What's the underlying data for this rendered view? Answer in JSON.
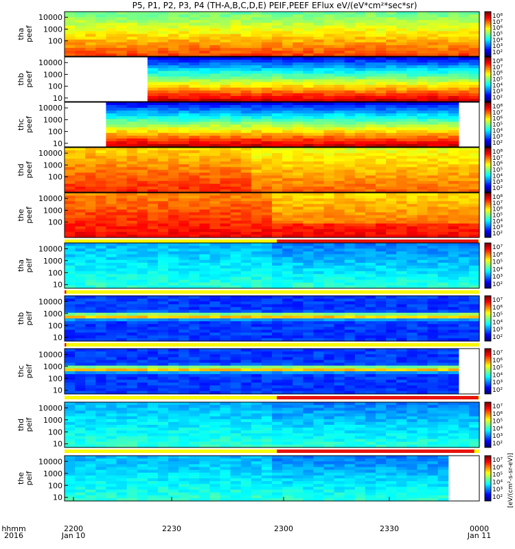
{
  "chart_data": {
    "type": "heatmap",
    "title": "P5, P1, P2, P3, P4 (TH-A,B,C,D,E) PEIF,PEEF EFlux eV/(eV*cm²*sec*sr)",
    "x_ticks": [
      "2200",
      "2230",
      "2300",
      "2330",
      "0000"
    ],
    "x_dates": [
      "Jan 10",
      "Jan 11"
    ],
    "x_axis_label": "hhmm",
    "x_axis_year": "2016",
    "colorbar_label": "[eV/(cm²-s-sr-eV)]",
    "colorbar_ticks_high": [
      "10⁸",
      "10⁷",
      "10⁶",
      "10⁵",
      "10⁴",
      "10³",
      "10²"
    ],
    "colorbar_ticks_low": [
      "10⁷",
      "10⁶",
      "10⁵",
      "10⁴",
      "10³",
      "10²"
    ],
    "y_ticks": [
      "10000",
      "1000",
      "100",
      "10"
    ],
    "y_scale": "log",
    "ylim": [
      5,
      30000
    ],
    "panels": [
      {
        "probe": "tha",
        "product": "peef",
        "ylabel": "tha\npeef",
        "yticks": [
          "10000",
          "1000",
          "100"
        ],
        "mode": "eef",
        "gaps": [],
        "notch": [
          0.39,
          0.41
        ],
        "bright": [
          [
            0.0,
            0.235,
            "orange"
          ],
          [
            0.39,
            0.41,
            "green"
          ]
        ],
        "flag_bar": null
      },
      {
        "probe": "thb",
        "product": "peef",
        "ylabel": "thb\npeef",
        "yticks": [
          "10000",
          "1000",
          "100",
          "10"
        ],
        "mode": "eef_cool",
        "gaps": [
          [
            0.0,
            0.19
          ]
        ],
        "flag_bar": null
      },
      {
        "probe": "thc",
        "product": "peef",
        "ylabel": "thc\npeef",
        "yticks": [
          "10000",
          "1000",
          "100",
          "10"
        ],
        "mode": "eef_cool",
        "gaps": [
          [
            0.0,
            0.095
          ],
          [
            0.955,
            1.0
          ]
        ],
        "flag_bar": null
      },
      {
        "probe": "thd",
        "product": "peef",
        "ylabel": "thd\npeef",
        "yticks": [
          "10000",
          "1000",
          "100"
        ],
        "mode": "eef_hot",
        "gaps": [],
        "flag_bar": null
      },
      {
        "probe": "the",
        "product": "peef",
        "ylabel": "the\npeef",
        "yticks": [
          "10000",
          "1000",
          "100"
        ],
        "mode": "eef_hot2",
        "gaps": [],
        "flag_bar": [
          0.512,
          0.998
        ]
      },
      {
        "probe": "tha",
        "product": "peif",
        "ylabel": "tha\npeif",
        "yticks": [
          "10000",
          "1000",
          "100",
          "10"
        ],
        "mode": "eif",
        "gaps": [],
        "flag_bar": [
          0.0,
          0.004
        ]
      },
      {
        "probe": "thb",
        "product": "peif",
        "ylabel": "thb\npeif",
        "yticks": [
          "10000",
          "1000",
          "100",
          "10"
        ],
        "mode": "eif_band",
        "gaps": [],
        "flag_bar": [
          0.0,
          0.004
        ]
      },
      {
        "probe": "thc",
        "product": "peif",
        "ylabel": "thc\npeif",
        "yticks": [
          "10000",
          "1000",
          "100",
          "10"
        ],
        "mode": "eif_band",
        "gaps": [
          [
            0.938,
            1.0
          ]
        ],
        "flag_bar": [
          0.512,
          0.998
        ]
      },
      {
        "probe": "thd",
        "product": "peif",
        "ylabel": "thd\npeif",
        "yticks": [
          "10000",
          "1000",
          "100",
          "10"
        ],
        "mode": "eif",
        "gaps": [],
        "flag_bar": [
          0.512,
          0.988
        ]
      },
      {
        "probe": "the",
        "product": "peif",
        "ylabel": "the\npeif",
        "yticks": [
          "10000",
          "1000",
          "100",
          "10"
        ],
        "mode": "eif",
        "gaps": [
          [
            0.915,
            1.0
          ]
        ],
        "flag_bar": null
      }
    ],
    "colors": {
      "flag_red": "#e8140c",
      "flag_yellow": "#f8f800",
      "missing": "#ffffff"
    }
  }
}
